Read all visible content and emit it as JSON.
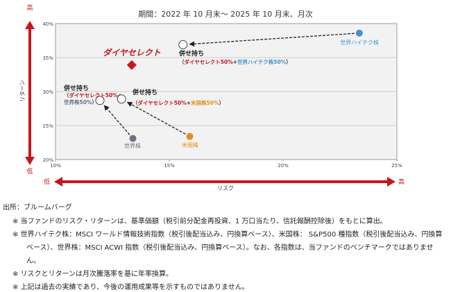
{
  "chart_data": {
    "type": "scatter",
    "title": "期間：2022 年 10 月末～ 2025 年 10 月末、月次",
    "xlabel": "リスク",
    "ylabel": "リターン",
    "x_low": "低",
    "x_high": "高",
    "y_low": "低",
    "y_high": "高",
    "xlim": [
      10,
      25
    ],
    "ylim": [
      20,
      40
    ],
    "xticks": [
      "10%",
      "15%",
      "20%",
      "25%"
    ],
    "xtick_values": [
      10,
      15,
      20,
      25
    ],
    "yticks": [
      "20%",
      "25%",
      "30%",
      "35%",
      "40%"
    ],
    "ytick_values": [
      20,
      25,
      30,
      35,
      40
    ],
    "grid": true,
    "points": [
      {
        "id": "diaselect",
        "name": "ダイヤセレクト",
        "x": 13.35,
        "y": 33.9,
        "marker": "diamond",
        "color": "#c8161d"
      },
      {
        "id": "hitech",
        "name": "世界ハイテク株",
        "x": 23.35,
        "y": 38.6,
        "marker": "dot",
        "color": "#4a93c8"
      },
      {
        "id": "world",
        "name": "世界株",
        "x": 13.4,
        "y": 23.1,
        "marker": "dot",
        "color": "#6b7280"
      },
      {
        "id": "us",
        "name": "米国株",
        "x": 15.9,
        "y": 23.4,
        "marker": "dot",
        "color": "#e0901f"
      },
      {
        "id": "blend_hitech",
        "name": "併せ持ち",
        "sub": [
          "ダイヤセレクト50%",
          "+",
          "世界ハイテク株50%"
        ],
        "x": 15.6,
        "y": 36.9,
        "marker": "open"
      },
      {
        "id": "blend_world",
        "name": "併せ持ち",
        "sub": [
          "ダイヤセレクト50%",
          "+",
          "世界株50%"
        ],
        "x": 11.95,
        "y": 28.7,
        "marker": "open"
      },
      {
        "id": "blend_us",
        "name": "併せ持ち",
        "sub": [
          "ダイヤセレクト50%",
          "+",
          "米国株50%"
        ],
        "x": 12.9,
        "y": 28.9,
        "marker": "open"
      }
    ],
    "arrows": [
      [
        "hitech",
        "blend_hitech"
      ],
      [
        "world",
        "blend_world"
      ],
      [
        "us",
        "blend_us"
      ]
    ]
  },
  "notes": {
    "source": "出所：ブルームバーグ",
    "items": [
      "※ 当ファンドのリスク・リターンは、基準価額（税引前分配金再投資、1 万口当たり、信託報酬控除後）をもとに算出。",
      "※ 世界ハイテク株：MSCI ワールド情報技術指数（税引後配当込み、円換算ベース）、米国株： S&P500 種指数（税引後配当込み、円換算ベース）、世界株：MSCI ACWI 指数（税引後配当込み、円換算ベース）。なお、各指数は、当ファンドのベンチマークではありません。",
      "※ リスクとリターンは月次騰落率を基に年率換算。",
      "※ 上記は過去の実績であり、今後の運用成果等を示すものではありません。"
    ]
  },
  "colors": {
    "accent": "#c8161d",
    "plot_bg": "#f2f2f2",
    "paren": "#333333"
  }
}
